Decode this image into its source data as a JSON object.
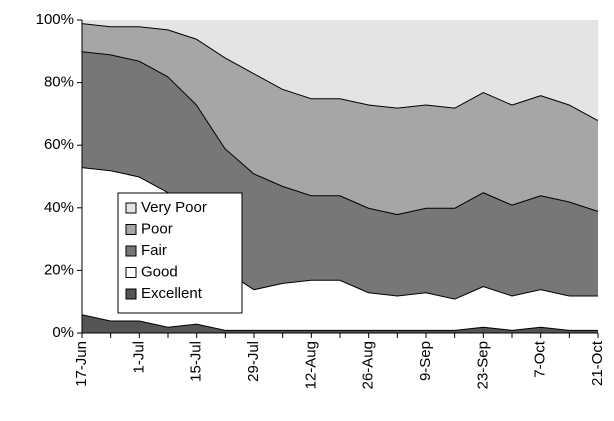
{
  "chart_data": {
    "type": "stacked-area",
    "categories": [
      "17-Jun",
      null,
      "1-Jul",
      null,
      "15-Jul",
      null,
      "29-Jul",
      null,
      "12-Aug",
      null,
      "26-Aug",
      null,
      "9-Sep",
      null,
      "23-Sep",
      null,
      "7-Oct",
      null,
      "21-Oct"
    ],
    "series": [
      {
        "name": "Excellent",
        "color": "#555555",
        "values": [
          6,
          4,
          4,
          2,
          3,
          1,
          1,
          1,
          1,
          1,
          1,
          1,
          1,
          1,
          2,
          1,
          2,
          1,
          1
        ]
      },
      {
        "name": "Good",
        "color": "#ffffff",
        "values": [
          47,
          48,
          46,
          43,
          32,
          19,
          13,
          15,
          16,
          16,
          12,
          11,
          12,
          10,
          13,
          11,
          12,
          11,
          11
        ]
      },
      {
        "name": "Fair",
        "color": "#777777",
        "values": [
          37,
          37,
          37,
          37,
          38,
          39,
          37,
          31,
          27,
          27,
          27,
          26,
          27,
          29,
          30,
          29,
          30,
          30,
          27
        ]
      },
      {
        "name": "Poor",
        "color": "#a6a6a6",
        "values": [
          9,
          9,
          11,
          15,
          21,
          29,
          32,
          31,
          31,
          31,
          33,
          34,
          33,
          32,
          32,
          32,
          32,
          31,
          29
        ]
      },
      {
        "name": "Very Poor",
        "color": "#e4e4e4",
        "values": [
          1,
          2,
          2,
          3,
          6,
          12,
          17,
          22,
          25,
          25,
          27,
          28,
          27,
          28,
          23,
          27,
          24,
          27,
          32
        ]
      }
    ],
    "ylim": [
      0,
      100
    ],
    "yticks": [
      {
        "value": 0,
        "label": "0%"
      },
      {
        "value": 20,
        "label": "20%"
      },
      {
        "value": 40,
        "label": "40%"
      },
      {
        "value": 60,
        "label": "60%"
      },
      {
        "value": 80,
        "label": "80%"
      },
      {
        "value": 100,
        "label": "100%"
      }
    ],
    "legend": "lower-left"
  }
}
